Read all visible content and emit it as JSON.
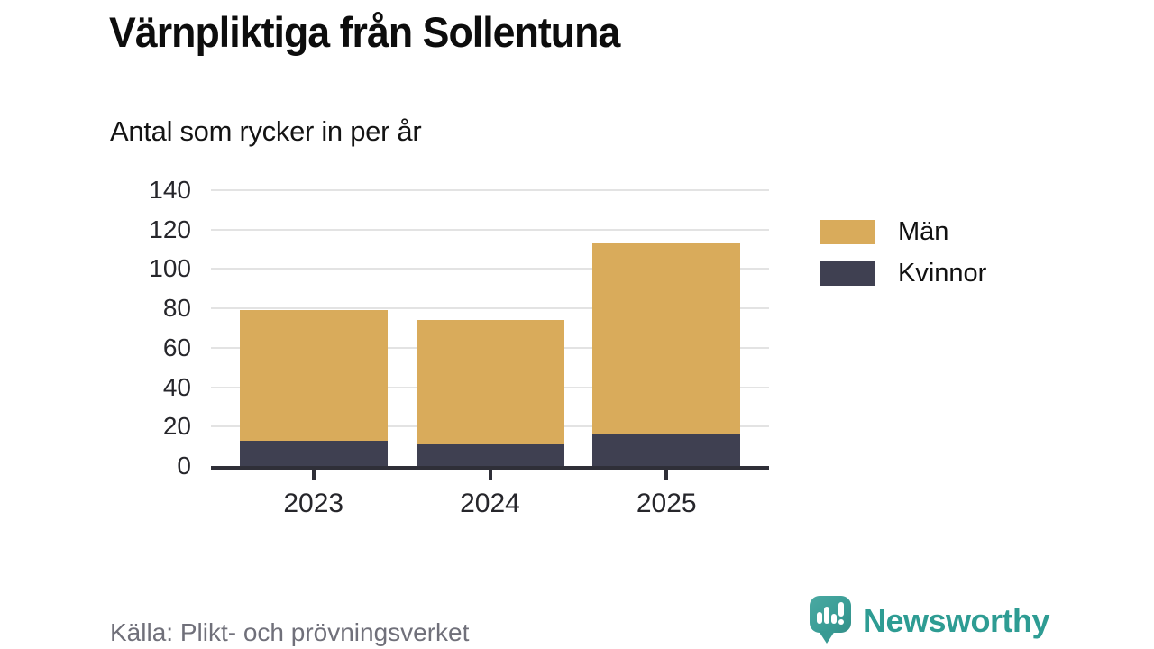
{
  "title": "Värnpliktiga från Sollentuna",
  "subtitle": "Antal som rycker in per år",
  "source": "Källa: Plikt- och prövningsverket",
  "brand": {
    "name": "Newsworthy"
  },
  "colors": {
    "male": "#d9ab5b",
    "female": "#3f4051",
    "grid": "#e3e3e3",
    "axis": "#2f2f38",
    "tick_text": "#26262b",
    "muted_text": "#70707a",
    "brand_teal": "#2e9c93"
  },
  "legend": {
    "position": "right",
    "items": [
      {
        "label": "Män",
        "color_key": "male"
      },
      {
        "label": "Kvinnor",
        "color_key": "female"
      }
    ]
  },
  "chart_data": {
    "type": "bar",
    "stacked": true,
    "title": "Värnpliktiga från Sollentuna",
    "xlabel": "",
    "ylabel": "Antal som rycker in per år",
    "categories": [
      "2023",
      "2024",
      "2025"
    ],
    "series": [
      {
        "name": "Kvinnor",
        "color_key": "female",
        "values": [
          13,
          11,
          16
        ]
      },
      {
        "name": "Män",
        "color_key": "male",
        "values": [
          66,
          63,
          97
        ]
      }
    ],
    "stack_totals": [
      79,
      74,
      113
    ],
    "ylim": [
      0,
      140
    ],
    "yticks": [
      0,
      20,
      40,
      60,
      80,
      100,
      120,
      140
    ],
    "grid": true,
    "legend_position": "right"
  }
}
